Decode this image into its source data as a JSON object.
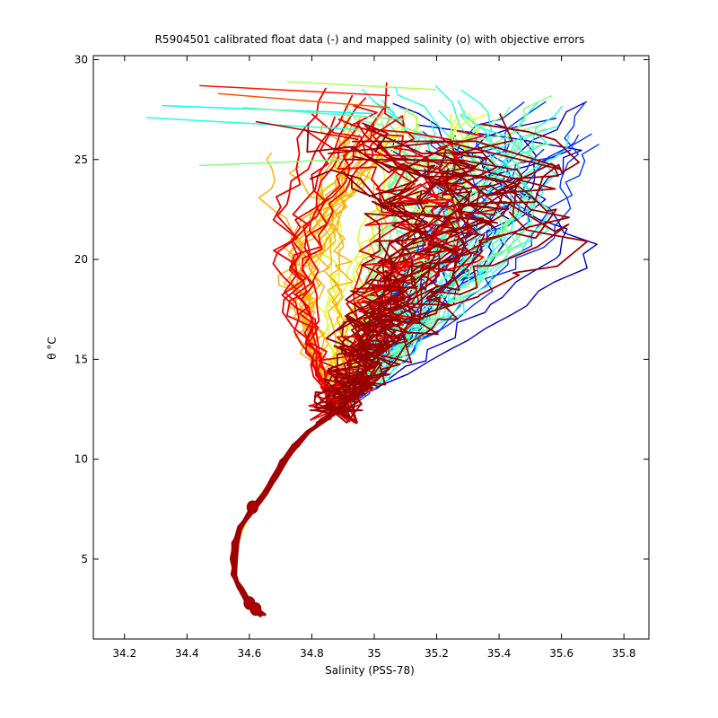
{
  "chart_data": {
    "type": "line",
    "title": "R5904501 calibrated float data (-) and mapped salinity (o) with objective errors",
    "xlabel": "Salinity (PSS-78)",
    "ylabel": "θ °C",
    "xlim": [
      34.1,
      35.88
    ],
    "ylim": [
      1,
      30.2
    ],
    "xticks": [
      34.2,
      34.4,
      34.6,
      34.8,
      35,
      35.2,
      35.4,
      35.6,
      35.8
    ],
    "xtick_labels": [
      "34.2",
      "34.4",
      "34.6",
      "34.8",
      "35",
      "35.2",
      "35.4",
      "35.6",
      "35.8"
    ],
    "yticks": [
      5,
      10,
      15,
      20,
      25,
      30
    ],
    "ytick_labels": [
      "5",
      "10",
      "15",
      "20",
      "25",
      "30"
    ],
    "grid": false,
    "legend": "none",
    "colormap": "jet",
    "colormap_stops": [
      "#00008f",
      "#0000ff",
      "#00ffff",
      "#80ff80",
      "#ffff00",
      "#ff0000",
      "#800000"
    ],
    "deep_trunk": {
      "color": "#a00000",
      "points": [
        [
          34.64,
          2.2
        ],
        [
          34.6,
          2.8
        ],
        [
          34.57,
          3.5
        ],
        [
          34.55,
          4.2
        ],
        [
          34.55,
          5.0
        ],
        [
          34.555,
          5.8
        ],
        [
          34.575,
          6.6
        ],
        [
          34.61,
          7.5
        ],
        [
          34.65,
          8.3
        ],
        [
          34.68,
          9.1
        ],
        [
          34.71,
          9.9
        ],
        [
          34.75,
          10.7
        ],
        [
          34.79,
          11.4
        ],
        [
          34.84,
          12.0
        ],
        [
          34.88,
          12.4
        ]
      ]
    },
    "mapped_salinity_points": [
      {
        "salinity": 34.61,
        "theta": 7.6
      },
      {
        "salinity": 34.6,
        "theta": 2.8
      },
      {
        "salinity": 34.62,
        "theta": 2.5
      }
    ],
    "profile_families": [
      {
        "name_hint": "dark-blue",
        "count": 8,
        "color_index": 0.08,
        "envelope": {
          "s_lo": 34.95,
          "s_hi": 35.78,
          "t_top": 28.0,
          "bulge_s": 35.74,
          "bulge_t": 23.3
        }
      },
      {
        "name_hint": "blue",
        "count": 14,
        "color_index": 0.2,
        "envelope": {
          "s_lo": 34.95,
          "s_hi": 35.72,
          "t_top": 28.2,
          "bulge_s": 35.68,
          "bulge_t": 23.8
        }
      },
      {
        "name_hint": "cyan",
        "count": 18,
        "color_index": 0.38,
        "envelope": {
          "s_lo": 34.85,
          "s_hi": 35.66,
          "t_top": 28.8,
          "bulge_s": 35.6,
          "bulge_t": 21.5
        }
      },
      {
        "name_hint": "green",
        "count": 16,
        "color_index": 0.5,
        "envelope": {
          "s_lo": 34.78,
          "s_hi": 35.6,
          "t_top": 28.5,
          "bulge_s": 35.55,
          "bulge_t": 24.0
        }
      },
      {
        "name_hint": "yellow",
        "count": 12,
        "color_index": 0.62,
        "envelope": {
          "s_lo": 34.72,
          "s_hi": 35.4,
          "t_top": 28.0,
          "bulge_s": 35.3,
          "bulge_t": 21.0
        }
      },
      {
        "name_hint": "orange",
        "count": 16,
        "color_index": 0.72,
        "envelope": {
          "s_lo": 34.66,
          "s_hi": 35.15,
          "t_top": 27.6,
          "bulge_s": 35.05,
          "bulge_t": 22.0
        }
      },
      {
        "name_hint": "red",
        "count": 18,
        "color_index": 0.86,
        "envelope": {
          "s_lo": 34.7,
          "s_hi": 35.6,
          "t_top": 28.7,
          "bulge_s": 35.5,
          "bulge_t": 22.5
        }
      },
      {
        "name_hint": "dark-red",
        "count": 20,
        "color_index": 0.97,
        "envelope": {
          "s_lo": 34.75,
          "s_hi": 35.7,
          "t_top": 27.0,
          "bulge_s": 35.65,
          "bulge_t": 22.6
        }
      }
    ],
    "surface_streaks": [
      {
        "s0": 34.27,
        "t0": 27.1,
        "s1": 34.95,
        "t1": 26.5,
        "color_index": 0.38
      },
      {
        "s0": 34.32,
        "t0": 27.7,
        "s1": 35.0,
        "t1": 27.3,
        "color_index": 0.33
      },
      {
        "s0": 34.44,
        "t0": 24.7,
        "s1": 34.9,
        "t1": 25.0,
        "color_index": 0.5
      },
      {
        "s0": 34.44,
        "t0": 28.7,
        "s1": 35.05,
        "t1": 28.2,
        "color_index": 0.82
      },
      {
        "s0": 34.5,
        "t0": 28.3,
        "s1": 35.05,
        "t1": 27.6,
        "color_index": 0.78
      },
      {
        "s0": 34.62,
        "t0": 26.9,
        "s1": 34.95,
        "t1": 26.0,
        "color_index": 0.95
      },
      {
        "s0": 34.58,
        "t0": 27.6,
        "s1": 35.1,
        "t1": 27.0,
        "color_index": 0.45
      },
      {
        "s0": 34.72,
        "t0": 28.9,
        "s1": 35.2,
        "t1": 28.5,
        "color_index": 0.55
      }
    ]
  }
}
